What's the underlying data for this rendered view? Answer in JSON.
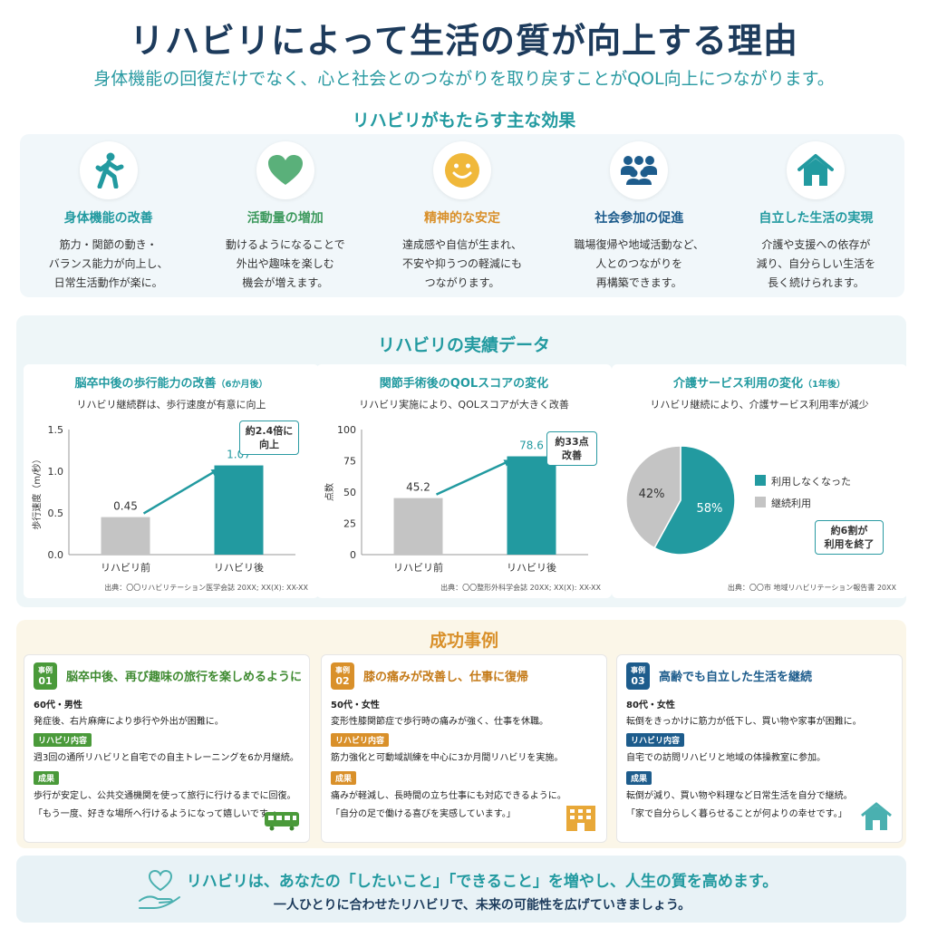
{
  "header": {
    "title": "リハビリによって生活の質が向上する理由",
    "subtitle": "身体機能の回復だけでなく、心と社会とのつながりを取り戻すことがQOL向上につながります。"
  },
  "effects": {
    "heading": "リハビリがもたらす主な効果",
    "items": [
      {
        "title": "身体機能の改善",
        "desc": "筋力・関節の動き・\nバランス能力が向上し、\n日常生活動作が楽に。",
        "icon": "walking-person-icon",
        "color": "#229aa0"
      },
      {
        "title": "活動量の増加",
        "desc": "動けるようになることで\n外出や趣味を楽しむ\n機会が増えます。",
        "icon": "heart-icon",
        "color": "#5ab07a"
      },
      {
        "title": "精神的な安定",
        "desc": "達成感や自信が生まれ、\n不安や抑うつの軽減にも\nつながります。",
        "icon": "smile-icon",
        "color": "#e0a020"
      },
      {
        "title": "社会参加の促進",
        "desc": "職場復帰や地域活動など、\n人とのつながりを\n再構築できます。",
        "icon": "people-icon",
        "color": "#1d5c8c"
      },
      {
        "title": "自立した生活の実現",
        "desc": "介護や支援への依存が\n減り、自分らしい生活を\n長く続けられます。",
        "icon": "house-icon",
        "color": "#229aa0"
      }
    ]
  },
  "data_section": {
    "heading": "リハビリの実績データ"
  },
  "chart_data": [
    {
      "type": "bar",
      "title": "脳卒中後の歩行能力の改善",
      "title_note": "（6か月後）",
      "subtitle": "リハビリ継続群は、歩行速度が有意に向上",
      "ylabel": "歩行速度（m/秒）",
      "categories": [
        "リハビリ前",
        "リハビリ後"
      ],
      "values": [
        0.45,
        1.07
      ],
      "value_labels": [
        "0.45",
        "1.07"
      ],
      "yticks": [
        "0.0",
        "0.5",
        "1.0",
        "1.5"
      ],
      "ylim": [
        0,
        1.5
      ],
      "callout": "約2.4倍に\n向上",
      "source": "出典：〇〇リハビリテーション医学会誌 20XX; XX(X): XX-XX",
      "colors": [
        "#c4c4c4",
        "#229aa0"
      ]
    },
    {
      "type": "bar",
      "title": "関節手術後のQOLスコアの変化",
      "subtitle": "リハビリ実施により、QOLスコアが大きく改善",
      "ylabel": "点数",
      "categories": [
        "リハビリ前",
        "リハビリ後"
      ],
      "values": [
        45.2,
        78.6
      ],
      "value_labels": [
        "45.2",
        "78.6"
      ],
      "yticks": [
        "0",
        "25",
        "50",
        "75",
        "100"
      ],
      "ylim": [
        0,
        100
      ],
      "callout": "約33点\n改善",
      "source": "出典：〇〇整形外科学会誌 20XX; XX(X): XX-XX",
      "colors": [
        "#c4c4c4",
        "#229aa0"
      ]
    },
    {
      "type": "pie",
      "title": "介護サービス利用の変化",
      "title_note": "（1年後）",
      "subtitle": "リハビリ継続により、介護サービス利用率が減少",
      "slices": [
        {
          "name": "利用しなくなった",
          "value": 58,
          "label": "58%",
          "color": "#229aa0"
        },
        {
          "name": "継続利用",
          "value": 42,
          "label": "42%",
          "color": "#c4c4c4"
        }
      ],
      "callout": "約6割が\n利用を終了",
      "source": "出典：〇〇市 地域リハビリテーション報告書 20XX"
    }
  ],
  "success": {
    "heading": "成功事例",
    "case_prefix": "事例",
    "cases": [
      {
        "num": "01",
        "color": "#4a9a3a",
        "title": "脳卒中後、再び趣味の旅行を楽しめるように",
        "profile": "60代・男性",
        "background": "発症後、右片麻痺により歩行や外出が困難に。",
        "content_label": "リハビリ内容",
        "content": "週3回の通所リハビリと自宅での自主トレーニングを6か月継続。",
        "result_label": "成果",
        "result": "歩行が安定し、公共交通機関を使って旅行に行けるまでに回復。",
        "quote": "「もう一度、好きな場所へ行けるようになって嬉しいです。」",
        "deco": "train-icon"
      },
      {
        "num": "02",
        "color": "#d9902a",
        "title": "膝の痛みが改善し、仕事に復帰",
        "profile": "50代・女性",
        "background": "変形性膝関節症で歩行時の痛みが強く、仕事を休職。",
        "content_label": "リハビリ内容",
        "content": "筋力強化と可動域訓練を中心に3か月間リハビリを実施。",
        "result_label": "成果",
        "result": "痛みが軽減し、長時間の立ち仕事にも対応できるように。",
        "quote": "「自分の足で働ける喜びを実感しています。」",
        "deco": "building-icon"
      },
      {
        "num": "03",
        "color": "#1d5c8c",
        "title": "高齢でも自立した生活を継続",
        "profile": "80代・女性",
        "background": "転倒をきっかけに筋力が低下し、買い物や家事が困難に。",
        "content_label": "リハビリ内容",
        "content": "自宅での訪問リハビリと地域の体操教室に参加。",
        "result_label": "成果",
        "result": "転倒が減り、買い物や料理など日常生活を自分で継続。",
        "quote": "「家で自分らしく暮らせることが何よりの幸せです。」",
        "deco": "house-icon"
      }
    ]
  },
  "footer": {
    "main": "リハビリは、あなたの「したいこと」「できること」を増やし、人生の質を高めます。",
    "sub": "一人ひとりに合わせたリハビリで、未来の可能性を広げていきましょう。",
    "icon": "heart-hand-icon"
  }
}
